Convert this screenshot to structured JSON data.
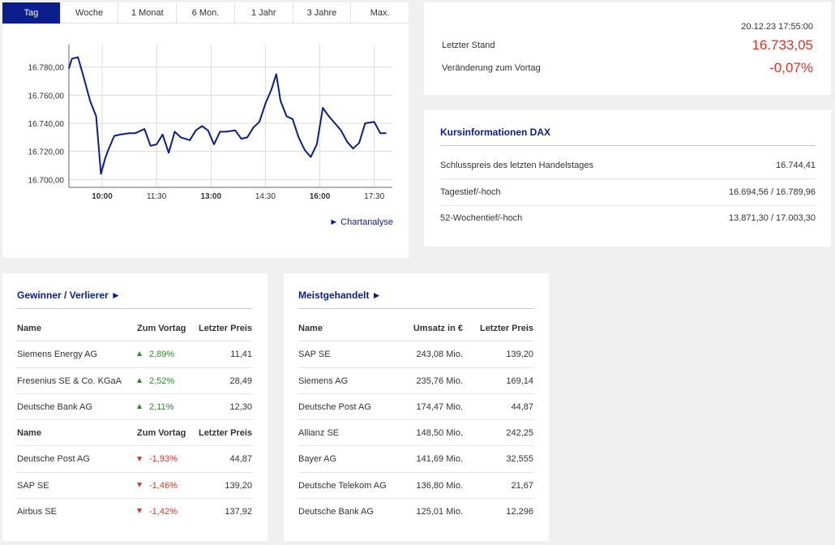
{
  "chart_tabs": [
    "Tag",
    "Woche",
    "1 Monat",
    "6 Mon.",
    "1 Jahr",
    "3 Jahre",
    "Max."
  ],
  "active_tab": 0,
  "chart_link": "► Chartanalyse",
  "chart_data": {
    "type": "line",
    "title": "",
    "xlabel": "",
    "ylabel": "",
    "x_ticks": [
      "10:00",
      "11:30",
      "13:00",
      "14:30",
      "16:00",
      "17:30"
    ],
    "y_ticks": [
      "16.780,00",
      "16.760,00",
      "16.740,00",
      "16.720,00",
      "16.700,00"
    ],
    "ylim": [
      16695,
      16796
    ],
    "xlim": [
      "09:05",
      "18:00"
    ],
    "grid": true,
    "series": [
      {
        "x": [
          "09:05",
          "09:10",
          "09:20",
          "09:30",
          "09:40",
          "09:50",
          "09:58",
          "10:05",
          "10:10",
          "10:20",
          "10:30",
          "10:45",
          "10:55",
          "11:10",
          "11:20",
          "11:30",
          "11:40",
          "11:50",
          "12:00",
          "12:10",
          "12:25",
          "12:35",
          "12:45",
          "12:55",
          "13:05",
          "13:15",
          "13:25",
          "13:40",
          "13:50",
          "14:00",
          "14:10",
          "14:20",
          "14:30",
          "14:40",
          "14:48",
          "14:55",
          "15:05",
          "15:15",
          "15:25",
          "15:35",
          "15:45",
          "15:55",
          "16:05",
          "16:15",
          "16:25",
          "16:35",
          "16:45",
          "16:55",
          "17:05",
          "17:15",
          "17:30",
          "17:40",
          "17:50"
        ],
        "y": [
          16779,
          16786,
          16787,
          16772,
          16756,
          16745,
          16704,
          16715,
          16721,
          16731,
          16732,
          16733,
          16733,
          16736,
          16724,
          16725,
          16732,
          16719,
          16734,
          16730,
          16728,
          16735,
          16738,
          16735,
          16725,
          16734,
          16734,
          16735,
          16729,
          16730,
          16737,
          16741,
          16754,
          16764,
          16775,
          16756,
          16745,
          16743,
          16730,
          16721,
          16716,
          16725,
          16751,
          16745,
          16740,
          16735,
          16727,
          16722,
          16726,
          16740,
          16741,
          16733,
          16733
        ]
      }
    ]
  },
  "quote": {
    "datetime": "20.12.23 17:55:00",
    "last_label": "Letzter Stand",
    "last_value": "16.733,05",
    "change_label": "Veränderung zum Vortag",
    "change_value": "-0,07%"
  },
  "info": {
    "title": "Kursinformationen DAX",
    "rows": [
      {
        "label": "Schlusspreis des letzten Handelstages",
        "value": "16.744,41"
      },
      {
        "label": "Tagestief/-hoch",
        "value": "16.694,56 / 16.789,96"
      },
      {
        "label": "52-Wochentief/-hoch",
        "value": "13.871,30 / 17.003,30"
      }
    ]
  },
  "gainers": {
    "title": "Gewinner / Verlierer ►",
    "headers": [
      "Name",
      "Zum Vortag",
      "Letzter Preis"
    ],
    "winners": [
      {
        "name": "Siemens Energy AG",
        "change": "2,89%",
        "price": "11,41"
      },
      {
        "name": "Fresenius SE & Co. KGaA",
        "change": "2,52%",
        "price": "28,49"
      },
      {
        "name": "Deutsche Bank AG",
        "change": "2,11%",
        "price": "12,30"
      }
    ],
    "losers": [
      {
        "name": "Deutsche Post AG",
        "change": "-1,93%",
        "price": "44,87"
      },
      {
        "name": "SAP SE",
        "change": "-1,46%",
        "price": "139,20"
      },
      {
        "name": "Airbus SE",
        "change": "-1,42%",
        "price": "137,92"
      }
    ]
  },
  "traded": {
    "title": "Meistgehandelt ►",
    "headers": [
      "Name",
      "Umsatz in €",
      "Letzter Preis"
    ],
    "rows": [
      {
        "name": "SAP SE",
        "volume": "243,08 Mio.",
        "price": "139,20"
      },
      {
        "name": "Siemens AG",
        "volume": "235,76 Mio.",
        "price": "169,14"
      },
      {
        "name": "Deutsche Post AG",
        "volume": "174,47 Mio.",
        "price": "44,87"
      },
      {
        "name": "Allianz SE",
        "volume": "148,50 Mio.",
        "price": "242,25"
      },
      {
        "name": "Bayer AG",
        "volume": "141,69 Mio.",
        "price": "32,555"
      },
      {
        "name": "Deutsche Telekom AG",
        "volume": "136,80 Mio.",
        "price": "21,67"
      },
      {
        "name": "Deutsche Bank AG",
        "volume": "125,01 Mio.",
        "price": "12,296"
      }
    ]
  }
}
